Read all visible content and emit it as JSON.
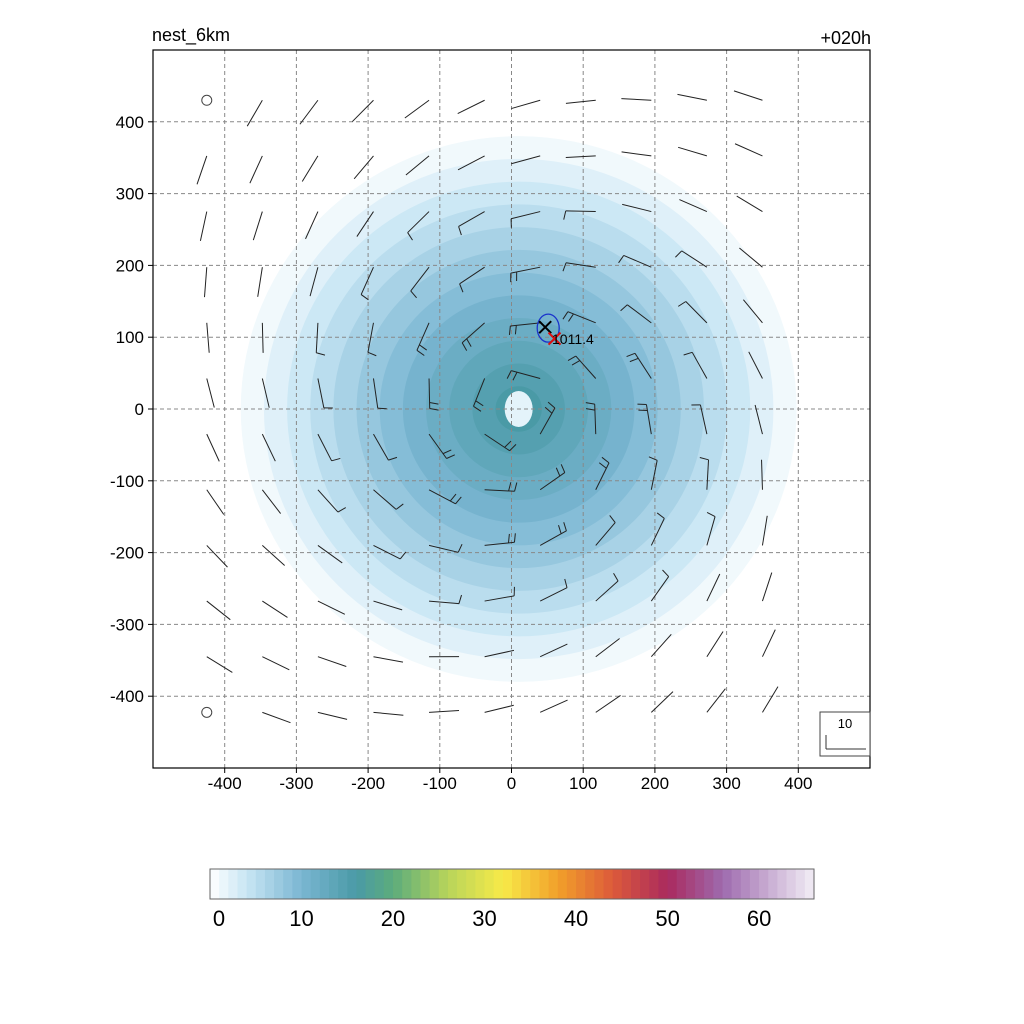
{
  "title_left": "nest_6km",
  "title_right": "+020h",
  "colors": {
    "frame": "#000000",
    "grid": "#888888",
    "contour": "#1a33cc",
    "center_x_black": "#000000",
    "center_x_red": "#dd1111"
  },
  "chart_data": {
    "type": "heatmap",
    "xlim": [
      -500,
      500
    ],
    "ylim": [
      -500,
      500
    ],
    "xticks": [
      -400,
      -300,
      -200,
      -100,
      0,
      100,
      200,
      300,
      400
    ],
    "yticks": [
      400,
      300,
      200,
      100,
      0,
      -100,
      -200,
      -300,
      -400
    ],
    "xtick_labels": [
      "-400",
      "-300",
      "-200",
      "-100",
      "0",
      "100",
      "200",
      "300",
      "400"
    ],
    "ytick_labels": [
      "400",
      "300",
      "200",
      "100",
      "0",
      "-100",
      "-200",
      "-300",
      "-400"
    ],
    "grid": true,
    "field": {
      "center": [
        10,
        0
      ],
      "radius_km": 380,
      "peak_value": 16,
      "eye_value": 2
    },
    "pressure_label": "1011.4",
    "markers": [
      {
        "name": "analysis-center",
        "x": 47,
        "y": 114,
        "color": "black"
      },
      {
        "name": "forecast-center",
        "x": 60,
        "y": 98,
        "color": "red"
      }
    ],
    "reference_vector_label": "10",
    "colorbar": {
      "min": 0,
      "max": 66,
      "tick_values": [
        0,
        10,
        20,
        30,
        40,
        50,
        60
      ],
      "tick_labels": [
        "0",
        "10",
        "20",
        "30",
        "40",
        "50",
        "60"
      ],
      "stops": [
        {
          "v": 0,
          "c": "#ffffff"
        },
        {
          "v": 4,
          "c": "#c8e6f4"
        },
        {
          "v": 10,
          "c": "#7ab6d2"
        },
        {
          "v": 16,
          "c": "#4a9aa6"
        },
        {
          "v": 20,
          "c": "#5cac7c"
        },
        {
          "v": 26,
          "c": "#b8d45a"
        },
        {
          "v": 32,
          "c": "#f7ea48"
        },
        {
          "v": 38,
          "c": "#f2a02a"
        },
        {
          "v": 44,
          "c": "#dc5a3a"
        },
        {
          "v": 50,
          "c": "#aa2a5e"
        },
        {
          "v": 56,
          "c": "#9e6aae"
        },
        {
          "v": 66,
          "c": "#f2eef6"
        }
      ]
    }
  }
}
